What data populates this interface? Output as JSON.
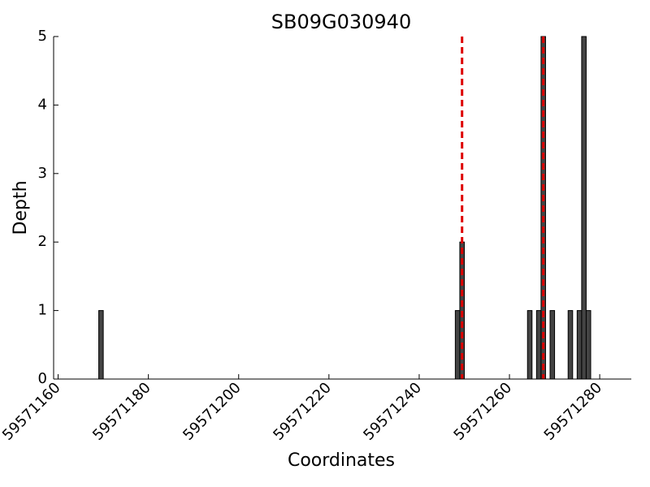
{
  "chart_data": {
    "type": "bar",
    "title": "SB09G030940",
    "xlabel": "Coordinates",
    "ylabel": "Depth",
    "x": [
      59571169,
      59571248,
      59571249,
      59571264,
      59571266,
      59571267,
      59571269,
      59571273,
      59571275,
      59571276,
      59571277
    ],
    "values": [
      1,
      1,
      2,
      1,
      1,
      5,
      1,
      1,
      1,
      5,
      1
    ],
    "color": "#444444",
    "vlines": [
      59571249.5,
      59571267.5
    ],
    "vline_color": "#dd0000",
    "xlim": [
      59571159,
      59571287
    ],
    "xticks": [
      59571160,
      59571180,
      59571200,
      59571220,
      59571240,
      59571260,
      59571280
    ],
    "ylim": [
      0,
      5
    ],
    "yticks": [
      0,
      1,
      2,
      3,
      4,
      5
    ]
  }
}
